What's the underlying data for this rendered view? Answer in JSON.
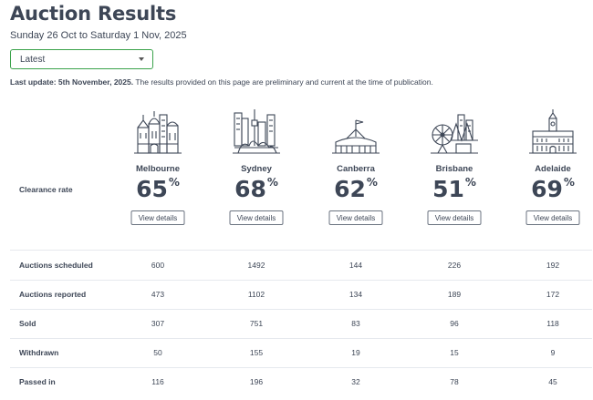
{
  "page": {
    "title": "Auction Results",
    "date_range": "Sunday 26 Oct to Saturday 1 Nov, 2025",
    "period_select": {
      "value": "Latest"
    },
    "last_update_bold": "Last update: 5th November, 2025.",
    "last_update_text": " The results provided on this page are preliminary and current at the time of publication."
  },
  "clearance_label": "Clearance rate",
  "view_details_label": "View details",
  "percent_sign": "%",
  "cities": [
    {
      "name": "Melbourne",
      "rate": "65",
      "icon": "melbourne-skyline-icon"
    },
    {
      "name": "Sydney",
      "rate": "68",
      "icon": "sydney-skyline-icon"
    },
    {
      "name": "Canberra",
      "rate": "62",
      "icon": "canberra-parliament-icon"
    },
    {
      "name": "Brisbane",
      "rate": "51",
      "icon": "brisbane-skyline-icon"
    },
    {
      "name": "Adelaide",
      "rate": "69",
      "icon": "adelaide-building-icon"
    }
  ],
  "stats": [
    {
      "label": "Auctions scheduled",
      "values": [
        "600",
        "1492",
        "144",
        "226",
        "192"
      ]
    },
    {
      "label": "Auctions reported",
      "values": [
        "473",
        "1102",
        "134",
        "189",
        "172"
      ]
    },
    {
      "label": "Sold",
      "values": [
        "307",
        "751",
        "83",
        "96",
        "118"
      ]
    },
    {
      "label": "Withdrawn",
      "values": [
        "50",
        "155",
        "19",
        "15",
        "9"
      ]
    },
    {
      "label": "Passed in",
      "values": [
        "116",
        "196",
        "32",
        "78",
        "45"
      ]
    }
  ]
}
